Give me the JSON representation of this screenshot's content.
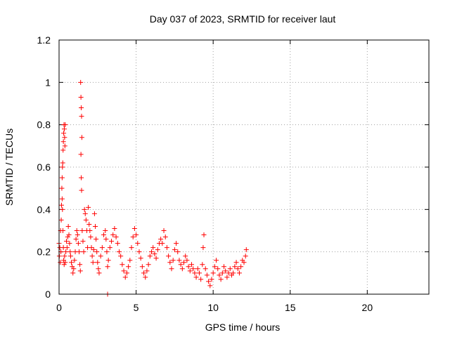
{
  "chart_data": {
    "type": "scatter",
    "title": "Day 037 of 2023, SRMTID for receiver laut",
    "xlabel": "GPS time / hours",
    "ylabel": "SRMTID / TECUs",
    "xlim": [
      0,
      24
    ],
    "ylim": [
      0,
      1.2
    ],
    "xticks": [
      0,
      5,
      10,
      15,
      20
    ],
    "yticks": [
      0,
      0.2,
      0.4,
      0.6,
      0.8,
      1,
      1.2
    ],
    "xtick_labels": [
      "0",
      "5",
      "10",
      "15",
      "20"
    ],
    "ytick_labels": [
      "0",
      "0.2",
      "0.4",
      "0.6",
      "0.8",
      "1",
      "1.2"
    ],
    "grid": true,
    "marker": "+",
    "color": "#ff0000",
    "series": [
      {
        "name": "laut",
        "points": [
          [
            0.0,
            0.24
          ],
          [
            0.02,
            0.18
          ],
          [
            0.05,
            0.22
          ],
          [
            0.08,
            0.15
          ],
          [
            0.1,
            0.3
          ],
          [
            0.12,
            0.2
          ],
          [
            0.14,
            0.35
          ],
          [
            0.16,
            0.42
          ],
          [
            0.18,
            0.5
          ],
          [
            0.2,
            0.45
          ],
          [
            0.22,
            0.6
          ],
          [
            0.24,
            0.62
          ],
          [
            0.26,
            0.68
          ],
          [
            0.28,
            0.72
          ],
          [
            0.3,
            0.76
          ],
          [
            0.32,
            0.8
          ],
          [
            0.34,
            0.78
          ],
          [
            0.36,
            0.74
          ],
          [
            0.38,
            0.7
          ],
          [
            0.4,
            0.8
          ],
          [
            0.2,
            0.55
          ],
          [
            0.22,
            0.4
          ],
          [
            0.25,
            0.3
          ],
          [
            0.28,
            0.22
          ],
          [
            0.3,
            0.16
          ],
          [
            0.33,
            0.14
          ],
          [
            0.36,
            0.18
          ],
          [
            0.4,
            0.15
          ],
          [
            0.44,
            0.2
          ],
          [
            0.48,
            0.25
          ],
          [
            0.52,
            0.22
          ],
          [
            0.56,
            0.27
          ],
          [
            0.6,
            0.32
          ],
          [
            0.64,
            0.28
          ],
          [
            0.68,
            0.24
          ],
          [
            0.72,
            0.2
          ],
          [
            0.75,
            0.18
          ],
          [
            0.8,
            0.15
          ],
          [
            0.85,
            0.13
          ],
          [
            0.9,
            0.1
          ],
          [
            0.95,
            0.12
          ],
          [
            1.0,
            0.16
          ],
          [
            1.05,
            0.2
          ],
          [
            1.1,
            0.26
          ],
          [
            1.15,
            0.3
          ],
          [
            1.2,
            0.28
          ],
          [
            1.25,
            0.24
          ],
          [
            1.3,
            0.2
          ],
          [
            1.35,
            0.14
          ],
          [
            1.38,
            0.11
          ],
          [
            1.4,
            1.0
          ],
          [
            1.42,
            0.93
          ],
          [
            1.44,
            0.88
          ],
          [
            1.46,
            0.84
          ],
          [
            1.48,
            0.74
          ],
          [
            1.42,
            0.66
          ],
          [
            1.44,
            0.55
          ],
          [
            1.46,
            0.49
          ],
          [
            1.5,
            0.3
          ],
          [
            1.55,
            0.25
          ],
          [
            1.6,
            0.2
          ],
          [
            1.65,
            0.4
          ],
          [
            1.7,
            0.38
          ],
          [
            1.75,
            0.35
          ],
          [
            1.8,
            0.3
          ],
          [
            1.85,
            0.22
          ],
          [
            1.9,
            0.41
          ],
          [
            1.95,
            0.33
          ],
          [
            2.0,
            0.3
          ],
          [
            2.05,
            0.27
          ],
          [
            2.1,
            0.22
          ],
          [
            2.15,
            0.18
          ],
          [
            2.2,
            0.15
          ],
          [
            2.25,
            0.21
          ],
          [
            2.3,
            0.38
          ],
          [
            2.35,
            0.32
          ],
          [
            2.4,
            0.26
          ],
          [
            2.45,
            0.2
          ],
          [
            2.5,
            0.15
          ],
          [
            2.55,
            0.12
          ],
          [
            2.6,
            0.1
          ],
          [
            2.7,
            0.18
          ],
          [
            2.8,
            0.22
          ],
          [
            2.9,
            0.28
          ],
          [
            3.0,
            0.3
          ],
          [
            3.05,
            0.26
          ],
          [
            3.1,
            0.2
          ],
          [
            3.15,
            0.13
          ],
          [
            3.15,
            0.0
          ],
          [
            3.2,
            0.16
          ],
          [
            3.3,
            0.22
          ],
          [
            3.4,
            0.25
          ],
          [
            3.5,
            0.28
          ],
          [
            3.6,
            0.31
          ],
          [
            3.7,
            0.27
          ],
          [
            3.8,
            0.24
          ],
          [
            3.9,
            0.2
          ],
          [
            4.0,
            0.18
          ],
          [
            4.1,
            0.14
          ],
          [
            4.2,
            0.11
          ],
          [
            4.3,
            0.08
          ],
          [
            4.4,
            0.1
          ],
          [
            4.5,
            0.13
          ],
          [
            4.6,
            0.16
          ],
          [
            4.7,
            0.22
          ],
          [
            4.8,
            0.27
          ],
          [
            4.9,
            0.31
          ],
          [
            5.0,
            0.28
          ],
          [
            5.1,
            0.24
          ],
          [
            5.2,
            0.2
          ],
          [
            5.3,
            0.17
          ],
          [
            5.4,
            0.13
          ],
          [
            5.5,
            0.1
          ],
          [
            5.6,
            0.08
          ],
          [
            5.7,
            0.11
          ],
          [
            5.8,
            0.14
          ],
          [
            5.9,
            0.18
          ],
          [
            6.0,
            0.2
          ],
          [
            6.1,
            0.22
          ],
          [
            6.2,
            0.19
          ],
          [
            6.3,
            0.17
          ],
          [
            6.4,
            0.21
          ],
          [
            6.5,
            0.24
          ],
          [
            6.6,
            0.26
          ],
          [
            6.7,
            0.24
          ],
          [
            6.8,
            0.3
          ],
          [
            6.9,
            0.27
          ],
          [
            7.0,
            0.22
          ],
          [
            7.1,
            0.18
          ],
          [
            7.2,
            0.15
          ],
          [
            7.3,
            0.12
          ],
          [
            7.4,
            0.16
          ],
          [
            7.5,
            0.21
          ],
          [
            7.6,
            0.24
          ],
          [
            7.7,
            0.2
          ],
          [
            7.8,
            0.16
          ],
          [
            7.9,
            0.14
          ],
          [
            8.0,
            0.12
          ],
          [
            8.1,
            0.15
          ],
          [
            8.2,
            0.18
          ],
          [
            8.3,
            0.16
          ],
          [
            8.4,
            0.13
          ],
          [
            8.5,
            0.11
          ],
          [
            8.6,
            0.14
          ],
          [
            8.7,
            0.12
          ],
          [
            8.8,
            0.1
          ],
          [
            8.9,
            0.08
          ],
          [
            9.0,
            0.12
          ],
          [
            9.1,
            0.1
          ],
          [
            9.2,
            0.07
          ],
          [
            9.3,
            0.14
          ],
          [
            9.35,
            0.22
          ],
          [
            9.4,
            0.28
          ],
          [
            9.5,
            0.12
          ],
          [
            9.6,
            0.09
          ],
          [
            9.7,
            0.06
          ],
          [
            9.8,
            0.04
          ],
          [
            9.9,
            0.07
          ],
          [
            10.0,
            0.1
          ],
          [
            10.1,
            0.13
          ],
          [
            10.2,
            0.16
          ],
          [
            10.3,
            0.12
          ],
          [
            10.4,
            0.09
          ],
          [
            10.5,
            0.07
          ],
          [
            10.6,
            0.1
          ],
          [
            10.7,
            0.13
          ],
          [
            10.8,
            0.11
          ],
          [
            10.9,
            0.08
          ],
          [
            11.0,
            0.1
          ],
          [
            11.1,
            0.12
          ],
          [
            11.2,
            0.09
          ],
          [
            11.3,
            0.1
          ],
          [
            11.4,
            0.13
          ],
          [
            11.5,
            0.15
          ],
          [
            11.6,
            0.12
          ],
          [
            11.7,
            0.1
          ],
          [
            11.8,
            0.13
          ],
          [
            11.9,
            0.16
          ],
          [
            12.0,
            0.15
          ],
          [
            12.1,
            0.18
          ],
          [
            12.15,
            0.21
          ]
        ]
      }
    ]
  }
}
